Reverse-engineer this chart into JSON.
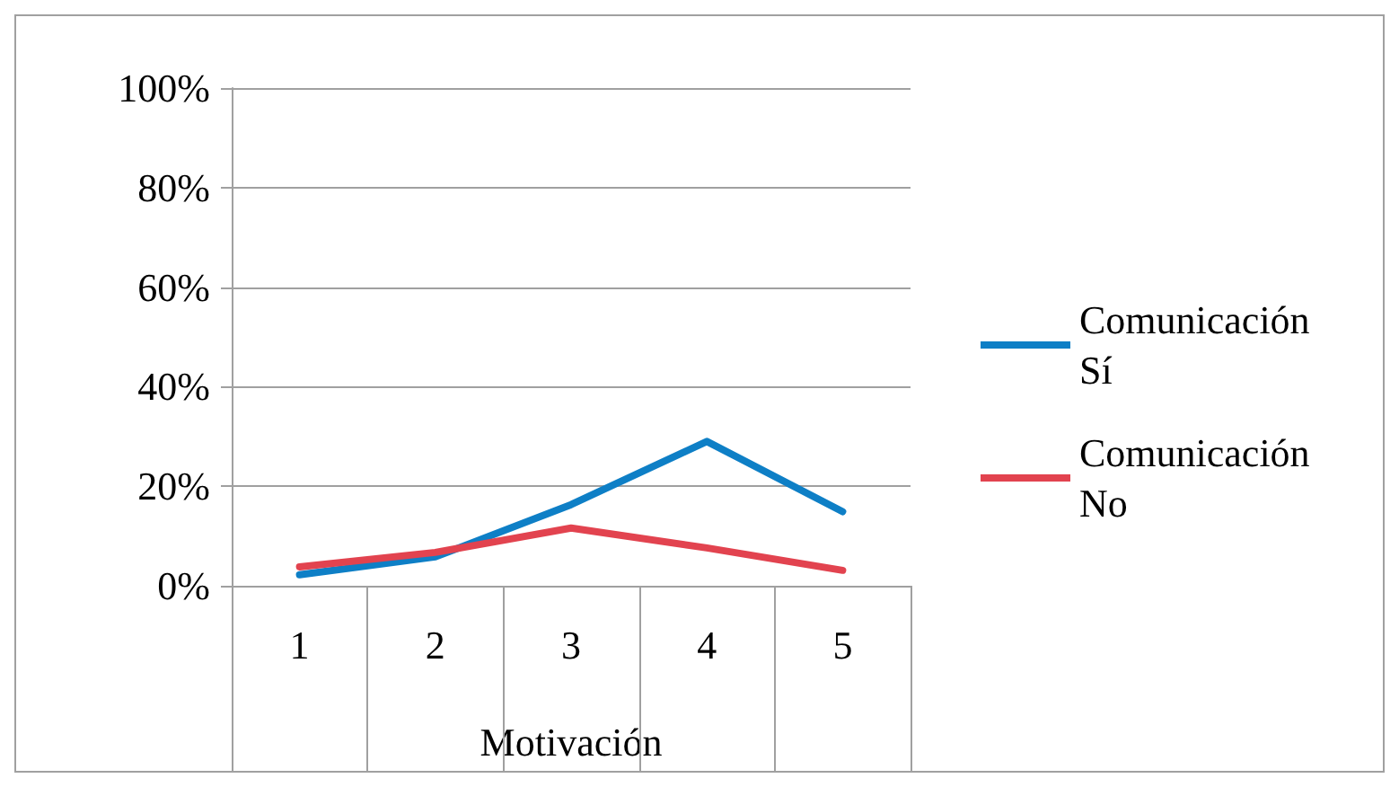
{
  "chart_data": {
    "type": "line",
    "xlabel": "Motivación",
    "categories": [
      "1",
      "2",
      "3",
      "4",
      "5"
    ],
    "series": [
      {
        "name": "Comunicación Sí",
        "color": "#0e7fc6",
        "values": [
          2.2,
          5.8,
          16.3,
          29,
          14.9
        ]
      },
      {
        "name": "Comunicación No",
        "color": "#e2434f",
        "values": [
          3.8,
          6.7,
          11.6,
          7.6,
          3.1
        ]
      }
    ],
    "ylim": [
      0,
      100
    ],
    "yticks": [
      {
        "value": 0,
        "label": "0%"
      },
      {
        "value": 20,
        "label": "20%"
      },
      {
        "value": 40,
        "label": "40%"
      },
      {
        "value": 60,
        "label": "60%"
      },
      {
        "value": 80,
        "label": "80%"
      },
      {
        "value": 100,
        "label": "100%"
      }
    ],
    "grid": "y",
    "legend": "right",
    "marker": "none",
    "line_style": "solid"
  }
}
